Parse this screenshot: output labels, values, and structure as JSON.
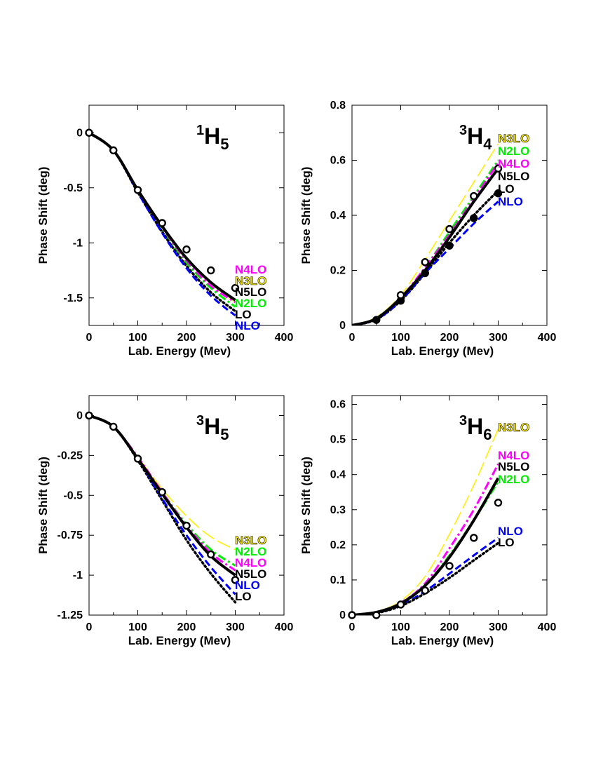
{
  "chart_data": [
    {
      "type": "line",
      "title": "1H5",
      "title_parts": {
        "sup": "1",
        "main": "H",
        "sub": "5"
      },
      "xlabel": "Lab. Energy (Mev)",
      "ylabel": "Phase Shift (deg)",
      "xlim": [
        0,
        400
      ],
      "ylim": [
        -1.75,
        0.25
      ],
      "xticks": [
        0,
        100,
        200,
        300,
        400
      ],
      "xtick_labels": [
        "0",
        "100",
        "200",
        "300",
        "400"
      ],
      "yticks": [
        0,
        -0.5,
        -1,
        -1.5
      ],
      "ytick_labels": [
        "0",
        "-0.5",
        "-1",
        "-1.5"
      ],
      "grid": false,
      "legend": [
        {
          "label": "N4LO",
          "color": "#ff00ff"
        },
        {
          "label": "N3LO",
          "color": "#ffee00"
        },
        {
          "label": "N5LO",
          "color": "#000000"
        },
        {
          "label": "N2LO",
          "color": "#00ee00"
        },
        {
          "label": "LO",
          "color": "#000000"
        },
        {
          "label": "NLO",
          "color": "#0000ff"
        }
      ],
      "series": [
        {
          "name": "N3LO",
          "style": "long-dash",
          "color": "#ffee00",
          "x": [
            0,
            50,
            100,
            150,
            200,
            250,
            300
          ],
          "y": [
            0,
            -0.16,
            -0.52,
            -0.86,
            -1.15,
            -1.37,
            -1.54
          ]
        },
        {
          "name": "N2LO",
          "style": "dash-dot",
          "color": "#00ee00",
          "x": [
            0,
            50,
            100,
            150,
            200,
            250,
            300
          ],
          "y": [
            0,
            -0.16,
            -0.53,
            -0.88,
            -1.18,
            -1.41,
            -1.58
          ]
        },
        {
          "name": "N4LO",
          "style": "dash-dot",
          "color": "#ff00ff",
          "x": [
            0,
            50,
            100,
            150,
            200,
            250,
            300
          ],
          "y": [
            0,
            -0.16,
            -0.52,
            -0.86,
            -1.16,
            -1.39,
            -1.54
          ]
        },
        {
          "name": "LO",
          "style": "dotted",
          "color": "#000000",
          "x": [
            0,
            50,
            100,
            150,
            200,
            250,
            300
          ],
          "y": [
            0,
            -0.16,
            -0.54,
            -0.9,
            -1.21,
            -1.45,
            -1.62
          ]
        },
        {
          "name": "NLO",
          "style": "dashed",
          "color": "#0000ff",
          "x": [
            0,
            50,
            100,
            150,
            200,
            250,
            300
          ],
          "y": [
            0,
            -0.16,
            -0.54,
            -0.91,
            -1.23,
            -1.48,
            -1.66
          ]
        },
        {
          "name": "N5LO",
          "style": "solid",
          "color": "#000000",
          "x": [
            0,
            50,
            100,
            150,
            200,
            250,
            300
          ],
          "y": [
            0,
            -0.16,
            -0.52,
            -0.85,
            -1.14,
            -1.36,
            -1.52
          ]
        }
      ],
      "points": [
        {
          "x": 0,
          "y": 0,
          "fill": "open"
        },
        {
          "x": 50,
          "y": -0.16,
          "fill": "open"
        },
        {
          "x": 100,
          "y": -0.52,
          "fill": "open"
        },
        {
          "x": 150,
          "y": -0.82,
          "fill": "open"
        },
        {
          "x": 200,
          "y": -1.06,
          "fill": "open"
        },
        {
          "x": 250,
          "y": -1.25,
          "fill": "open"
        },
        {
          "x": 300,
          "y": -1.41,
          "fill": "open"
        }
      ]
    },
    {
      "type": "line",
      "title": "3H4",
      "title_parts": {
        "sup": "3",
        "main": "H",
        "sub": "4"
      },
      "xlabel": "Lab. Energy (Mev)",
      "ylabel": "Phase Shift (deg)",
      "xlim": [
        0,
        400
      ],
      "ylim": [
        0,
        0.8
      ],
      "xticks": [
        0,
        100,
        200,
        300,
        400
      ],
      "xtick_labels": [
        "0",
        "100",
        "200",
        "300",
        "400"
      ],
      "yticks": [
        0,
        0.2,
        0.4,
        0.6,
        0.8
      ],
      "ytick_labels": [
        "0",
        "0.2",
        "0.4",
        "0.6",
        "0.8"
      ],
      "grid": false,
      "legend": [
        {
          "label": "N3LO",
          "color": "#ffee00"
        },
        {
          "label": "N2LO",
          "color": "#00ee00"
        },
        {
          "label": "N4LO",
          "color": "#ff00ff"
        },
        {
          "label": "N5LO",
          "color": "#000000"
        },
        {
          "label": "LO",
          "color": "#000000"
        },
        {
          "label": "NLO",
          "color": "#0000ff"
        }
      ],
      "series": [
        {
          "name": "N3LO",
          "style": "long-dash",
          "color": "#ffee00",
          "x": [
            0,
            50,
            100,
            150,
            200,
            250,
            300
          ],
          "y": [
            0,
            0.03,
            0.11,
            0.24,
            0.38,
            0.52,
            0.66
          ]
        },
        {
          "name": "N2LO",
          "style": "dash-dot",
          "color": "#00ee00",
          "x": [
            0,
            50,
            100,
            150,
            200,
            250,
            300
          ],
          "y": [
            0,
            0.025,
            0.1,
            0.21,
            0.34,
            0.47,
            0.6
          ]
        },
        {
          "name": "N4LO",
          "style": "dash-dot",
          "color": "#ff00ff",
          "x": [
            0,
            50,
            100,
            150,
            200,
            250,
            300
          ],
          "y": [
            0,
            0.025,
            0.1,
            0.21,
            0.33,
            0.46,
            0.59
          ]
        },
        {
          "name": "LO",
          "style": "dotted",
          "color": "#000000",
          "x": [
            0,
            50,
            100,
            150,
            200,
            250,
            300
          ],
          "y": [
            0,
            0.022,
            0.09,
            0.19,
            0.3,
            0.4,
            0.49
          ]
        },
        {
          "name": "NLO",
          "style": "dashed",
          "color": "#0000ff",
          "x": [
            0,
            50,
            100,
            150,
            200,
            250,
            300
          ],
          "y": [
            0,
            0.022,
            0.09,
            0.19,
            0.28,
            0.37,
            0.45
          ]
        },
        {
          "name": "N5LO",
          "style": "solid",
          "color": "#000000",
          "x": [
            0,
            50,
            100,
            150,
            200,
            250,
            300
          ],
          "y": [
            0,
            0.025,
            0.1,
            0.2,
            0.32,
            0.45,
            0.57
          ]
        }
      ],
      "points": [
        {
          "x": 50,
          "y": 0.02,
          "fill": "filled"
        },
        {
          "x": 100,
          "y": 0.09,
          "fill": "filled"
        },
        {
          "x": 150,
          "y": 0.19,
          "fill": "filled"
        },
        {
          "x": 200,
          "y": 0.29,
          "fill": "filled"
        },
        {
          "x": 250,
          "y": 0.39,
          "fill": "filled"
        },
        {
          "x": 300,
          "y": 0.48,
          "fill": "filled"
        },
        {
          "x": 100,
          "y": 0.11,
          "fill": "open"
        },
        {
          "x": 150,
          "y": 0.23,
          "fill": "open"
        },
        {
          "x": 200,
          "y": 0.35,
          "fill": "open"
        },
        {
          "x": 250,
          "y": 0.47,
          "fill": "open"
        },
        {
          "x": 300,
          "y": 0.57,
          "fill": "open"
        }
      ]
    },
    {
      "type": "line",
      "title": "3H5",
      "title_parts": {
        "sup": "3",
        "main": "H",
        "sub": "5"
      },
      "xlabel": "Lab. Energy (Mev)",
      "ylabel": "Phase Shift (deg)",
      "xlim": [
        0,
        400
      ],
      "ylim": [
        -1.25,
        0.125
      ],
      "xticks": [
        0,
        100,
        200,
        300,
        400
      ],
      "xtick_labels": [
        "0",
        "100",
        "200",
        "300",
        "400"
      ],
      "yticks": [
        0,
        -0.25,
        -0.5,
        -0.75,
        -1,
        -1.25
      ],
      "ytick_labels": [
        "0",
        "-0.25",
        "-0.5",
        "-0.75",
        "-1",
        "-1.25"
      ],
      "grid": false,
      "legend": [
        {
          "label": "N3LO",
          "color": "#ffee00"
        },
        {
          "label": "N2LO",
          "color": "#00ee00"
        },
        {
          "label": "N4LO",
          "color": "#ff00ff"
        },
        {
          "label": "N5LO",
          "color": "#000000"
        },
        {
          "label": "NLO",
          "color": "#0000ff"
        },
        {
          "label": "LO",
          "color": "#000000"
        }
      ],
      "series": [
        {
          "name": "N3LO",
          "style": "long-dash",
          "color": "#ffee00",
          "x": [
            0,
            50,
            100,
            150,
            200,
            250,
            300
          ],
          "y": [
            0,
            -0.07,
            -0.26,
            -0.46,
            -0.63,
            -0.76,
            -0.84
          ]
        },
        {
          "name": "N2LO",
          "style": "dash-dot",
          "color": "#00ee00",
          "x": [
            0,
            50,
            100,
            150,
            200,
            250,
            300
          ],
          "y": [
            0,
            -0.07,
            -0.26,
            -0.48,
            -0.68,
            -0.84,
            -0.94
          ]
        },
        {
          "name": "N4LO",
          "style": "dash-dot",
          "color": "#ff00ff",
          "x": [
            0,
            50,
            100,
            150,
            200,
            250,
            300
          ],
          "y": [
            0,
            -0.07,
            -0.26,
            -0.48,
            -0.69,
            -0.86,
            -0.97
          ]
        },
        {
          "name": "LO",
          "style": "dotted",
          "color": "#000000",
          "x": [
            0,
            50,
            100,
            150,
            200,
            250,
            300
          ],
          "y": [
            0,
            -0.07,
            -0.28,
            -0.53,
            -0.78,
            -0.99,
            -1.17
          ]
        },
        {
          "name": "NLO",
          "style": "dashed",
          "color": "#0000ff",
          "x": [
            0,
            50,
            100,
            150,
            200,
            250,
            300
          ],
          "y": [
            0,
            -0.07,
            -0.27,
            -0.52,
            -0.75,
            -0.95,
            -1.12
          ]
        },
        {
          "name": "N5LO",
          "style": "solid",
          "color": "#000000",
          "x": [
            0,
            50,
            100,
            150,
            200,
            250,
            300
          ],
          "y": [
            0,
            -0.07,
            -0.27,
            -0.49,
            -0.7,
            -0.88,
            -1.0
          ]
        }
      ],
      "points": [
        {
          "x": 0,
          "y": 0,
          "fill": "open"
        },
        {
          "x": 50,
          "y": -0.07,
          "fill": "open"
        },
        {
          "x": 100,
          "y": -0.27,
          "fill": "open"
        },
        {
          "x": 150,
          "y": -0.48,
          "fill": "open"
        },
        {
          "x": 200,
          "y": -0.69,
          "fill": "open"
        },
        {
          "x": 250,
          "y": -0.87,
          "fill": "open"
        },
        {
          "x": 300,
          "y": -1.03,
          "fill": "open"
        }
      ]
    },
    {
      "type": "line",
      "title": "3H6",
      "title_parts": {
        "sup": "3",
        "main": "H",
        "sub": "6"
      },
      "xlabel": "Lab. Energy (Mev)",
      "ylabel": "Phase Shift (deg)",
      "xlim": [
        0,
        400
      ],
      "ylim": [
        0,
        0.625
      ],
      "xticks": [
        0,
        100,
        200,
        300,
        400
      ],
      "xtick_labels": [
        "0",
        "100",
        "200",
        "300",
        "400"
      ],
      "yticks": [
        0,
        0.1,
        0.2,
        0.3,
        0.4,
        0.5,
        0.6
      ],
      "ytick_labels": [
        "0",
        "0.1",
        "0.2",
        "0.3",
        "0.4",
        "0.5",
        "0.6"
      ],
      "grid": false,
      "legend": [
        {
          "label": "N3LO",
          "color": "#ffee00"
        },
        {
          "label": "N4LO",
          "color": "#ff00ff"
        },
        {
          "label": "N5LO",
          "color": "#000000"
        },
        {
          "label": "N2LO",
          "color": "#00ee00"
        },
        {
          "label": "NLO",
          "color": "#0000ff"
        },
        {
          "label": "LO",
          "color": "#000000"
        }
      ],
      "series": [
        {
          "name": "N3LO",
          "style": "long-dash",
          "color": "#ffee00",
          "x": [
            0,
            50,
            100,
            150,
            200,
            250,
            300
          ],
          "y": [
            0,
            0.01,
            0.04,
            0.11,
            0.23,
            0.37,
            0.53
          ]
        },
        {
          "name": "N4LO",
          "style": "dash-dot",
          "color": "#ff00ff",
          "x": [
            0,
            50,
            100,
            150,
            200,
            250,
            300
          ],
          "y": [
            0,
            0.008,
            0.035,
            0.09,
            0.19,
            0.3,
            0.43
          ]
        },
        {
          "name": "N2LO",
          "style": "dash-dot",
          "color": "#00ee00",
          "x": [
            0,
            50,
            100,
            150,
            200,
            250,
            300
          ],
          "y": [
            0,
            0.008,
            0.033,
            0.085,
            0.17,
            0.27,
            0.38
          ]
        },
        {
          "name": "NLO",
          "style": "dashed",
          "color": "#0000ff",
          "x": [
            0,
            50,
            100,
            150,
            200,
            250,
            300
          ],
          "y": [
            0,
            0.006,
            0.028,
            0.068,
            0.118,
            0.17,
            0.22
          ]
        },
        {
          "name": "LO",
          "style": "dotted",
          "color": "#000000",
          "x": [
            0,
            50,
            100,
            150,
            200,
            250,
            300
          ],
          "y": [
            0,
            0.006,
            0.026,
            0.062,
            0.106,
            0.156,
            0.205
          ]
        },
        {
          "name": "N5LO",
          "style": "solid",
          "color": "#000000",
          "x": [
            0,
            50,
            100,
            150,
            200,
            250,
            300
          ],
          "y": [
            0,
            0.008,
            0.033,
            0.084,
            0.165,
            0.27,
            0.39
          ]
        }
      ],
      "points": [
        {
          "x": 0,
          "y": 0,
          "fill": "open"
        },
        {
          "x": 50,
          "y": 0.0,
          "fill": "open"
        },
        {
          "x": 100,
          "y": 0.03,
          "fill": "open"
        },
        {
          "x": 150,
          "y": 0.07,
          "fill": "open"
        },
        {
          "x": 200,
          "y": 0.14,
          "fill": "open"
        },
        {
          "x": 250,
          "y": 0.22,
          "fill": "open"
        },
        {
          "x": 300,
          "y": 0.32,
          "fill": "open"
        }
      ]
    }
  ]
}
